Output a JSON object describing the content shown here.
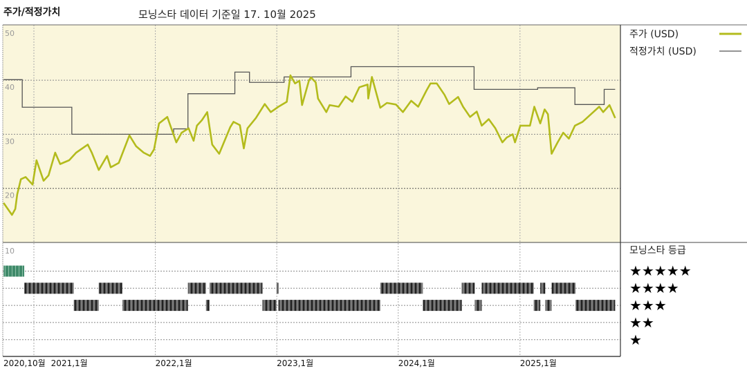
{
  "header": {
    "chart_title": "주가/적정가치",
    "data_date_label": "모닝스타 데이터 기준일 17. 10월 2025"
  },
  "legend": {
    "price_label": "주가 (USD)",
    "fair_value_label": "적정가치 (USD)",
    "rating_title": "모닝스타 등급",
    "rating_stars": [
      "★★★★★",
      "★★★★",
      "★★★",
      "★★",
      "★"
    ]
  },
  "colors": {
    "plot_background": "#faf6dc",
    "price_line": "#b3bb1c",
    "fair_value_line": "#555555",
    "rating_5_bar": "#3f8a6a",
    "rating_bar": "#3a3a3a"
  },
  "chart_data": [
    {
      "type": "line",
      "ylim": [
        10,
        50
      ],
      "yticks": [
        "50",
        "40",
        "30",
        "20"
      ],
      "xlim": [
        "2020-10-01",
        "2025-10-17"
      ],
      "xticks": [
        {
          "date": "2020-10-01",
          "label": "2020,10월"
        },
        {
          "date": "2021-01-01",
          "label": "2021,1월"
        },
        {
          "date": "2022-01-01",
          "label": "2022,1월"
        },
        {
          "date": "2023-01-01",
          "label": "2023,1월"
        },
        {
          "date": "2024-01-01",
          "label": "2024,1월"
        },
        {
          "date": "2025-01-01",
          "label": "2025,1월"
        }
      ],
      "grid": true,
      "legend": "right",
      "series": [
        {
          "name": "주가 (USD)",
          "points": [
            [
              "2020-10-02",
              17.3
            ],
            [
              "2020-10-27",
              15.1
            ],
            [
              "2020-11-06",
              16.2
            ],
            [
              "2020-11-12",
              18.9
            ],
            [
              "2020-11-23",
              21.7
            ],
            [
              "2020-12-07",
              22.1
            ],
            [
              "2020-12-28",
              20.7
            ],
            [
              "2021-01-09",
              25.2
            ],
            [
              "2021-01-30",
              21.4
            ],
            [
              "2021-02-14",
              22.4
            ],
            [
              "2021-03-06",
              26.6
            ],
            [
              "2021-03-21",
              24.5
            ],
            [
              "2021-04-17",
              25.2
            ],
            [
              "2021-05-08",
              26.6
            ],
            [
              "2021-06-12",
              28.1
            ],
            [
              "2021-06-24",
              26.6
            ],
            [
              "2021-07-15",
              23.4
            ],
            [
              "2021-08-09",
              26.0
            ],
            [
              "2021-08-20",
              23.9
            ],
            [
              "2021-09-13",
              24.7
            ],
            [
              "2021-10-15",
              29.8
            ],
            [
              "2021-11-04",
              27.8
            ],
            [
              "2021-11-27",
              26.6
            ],
            [
              "2021-12-16",
              26.0
            ],
            [
              "2021-12-28",
              27.2
            ],
            [
              "2022-01-12",
              32.0
            ],
            [
              "2022-02-06",
              33.2
            ],
            [
              "2022-02-18",
              31.1
            ],
            [
              "2022-03-05",
              28.5
            ],
            [
              "2022-03-21",
              30.3
            ],
            [
              "2022-04-11",
              31.1
            ],
            [
              "2022-04-26",
              28.8
            ],
            [
              "2022-05-06",
              31.6
            ],
            [
              "2022-05-21",
              32.6
            ],
            [
              "2022-06-06",
              34.1
            ],
            [
              "2022-06-21",
              28.1
            ],
            [
              "2022-07-12",
              26.4
            ],
            [
              "2022-08-14",
              31.3
            ],
            [
              "2022-08-24",
              32.3
            ],
            [
              "2022-09-12",
              31.7
            ],
            [
              "2022-09-24",
              27.4
            ],
            [
              "2022-10-05",
              31.1
            ],
            [
              "2022-10-30",
              33.0
            ],
            [
              "2022-11-26",
              35.6
            ],
            [
              "2022-12-14",
              34.1
            ],
            [
              "2023-01-06",
              35.1
            ],
            [
              "2023-01-31",
              36.0
            ],
            [
              "2023-02-11",
              40.9
            ],
            [
              "2023-02-25",
              39.4
            ],
            [
              "2023-03-10",
              39.9
            ],
            [
              "2023-03-18",
              35.4
            ],
            [
              "2023-04-08",
              40.0
            ],
            [
              "2023-04-14",
              40.5
            ],
            [
              "2023-04-28",
              39.6
            ],
            [
              "2023-05-05",
              36.6
            ],
            [
              "2023-05-30",
              34.1
            ],
            [
              "2023-06-09",
              35.4
            ],
            [
              "2023-07-06",
              35.1
            ],
            [
              "2023-07-27",
              37.0
            ],
            [
              "2023-08-16",
              36.0
            ],
            [
              "2023-09-06",
              38.7
            ],
            [
              "2023-10-01",
              39.2
            ],
            [
              "2023-10-03",
              36.6
            ],
            [
              "2023-10-14",
              40.6
            ],
            [
              "2023-11-08",
              34.9
            ],
            [
              "2023-11-28",
              35.8
            ],
            [
              "2023-12-25",
              35.5
            ],
            [
              "2024-01-15",
              34.1
            ],
            [
              "2024-02-09",
              36.2
            ],
            [
              "2024-03-01",
              35.1
            ],
            [
              "2024-03-26",
              38.1
            ],
            [
              "2024-04-07",
              39.4
            ],
            [
              "2024-04-26",
              39.4
            ],
            [
              "2024-05-19",
              37.3
            ],
            [
              "2024-06-02",
              35.6
            ],
            [
              "2024-06-29",
              36.9
            ],
            [
              "2024-07-14",
              35.1
            ],
            [
              "2024-08-04",
              33.2
            ],
            [
              "2024-08-24",
              34.2
            ],
            [
              "2024-09-08",
              31.6
            ],
            [
              "2024-09-29",
              32.8
            ],
            [
              "2024-10-19",
              31.1
            ],
            [
              "2024-11-09",
              28.5
            ],
            [
              "2024-11-22",
              29.4
            ],
            [
              "2024-12-10",
              30.0
            ],
            [
              "2024-12-17",
              28.5
            ],
            [
              "2025-01-02",
              31.6
            ],
            [
              "2025-01-31",
              31.6
            ],
            [
              "2025-02-13",
              35.1
            ],
            [
              "2025-03-03",
              32.0
            ],
            [
              "2025-03-16",
              34.6
            ],
            [
              "2025-03-26",
              33.7
            ],
            [
              "2025-04-06",
              26.4
            ],
            [
              "2025-04-24",
              28.5
            ],
            [
              "2025-05-11",
              30.3
            ],
            [
              "2025-05-28",
              29.2
            ],
            [
              "2025-06-15",
              31.6
            ],
            [
              "2025-07-08",
              32.3
            ],
            [
              "2025-08-02",
              33.7
            ],
            [
              "2025-08-27",
              35.1
            ],
            [
              "2025-09-08",
              34.1
            ],
            [
              "2025-09-27",
              35.4
            ],
            [
              "2025-10-14",
              33.0
            ]
          ]
        },
        {
          "name": "적정가치 (USD)",
          "step": true,
          "points": [
            [
              "2020-10-02",
              40.1
            ],
            [
              "2020-11-27",
              35.0
            ],
            [
              "2021-04-25",
              30.0
            ],
            [
              "2022-02-25",
              31.0
            ],
            [
              "2022-04-09",
              37.5
            ],
            [
              "2022-08-28",
              41.5
            ],
            [
              "2022-10-11",
              39.6
            ],
            [
              "2023-01-23",
              40.6
            ],
            [
              "2023-08-12",
              42.5
            ],
            [
              "2024-08-16",
              38.3
            ],
            [
              "2025-02-23",
              38.6
            ],
            [
              "2025-06-15",
              35.5
            ],
            [
              "2025-09-11",
              38.3
            ],
            [
              "2025-10-14",
              38.3
            ]
          ]
        }
      ]
    },
    {
      "type": "bar",
      "title": "모닝스타 등급",
      "ytick": "10",
      "rating_periods": [
        [
          "2020-10-02",
          "2020-12-03",
          5
        ],
        [
          "2020-12-03",
          "2021-05-01",
          4
        ],
        [
          "2021-05-01",
          "2021-07-15",
          3
        ],
        [
          "2021-07-15",
          "2021-09-24",
          4
        ],
        [
          "2021-09-24",
          "2022-04-09",
          3
        ],
        [
          "2022-04-09",
          "2022-06-02",
          4
        ],
        [
          "2022-06-02",
          "2022-06-13",
          3
        ],
        [
          "2022-06-13",
          "2022-11-19",
          4
        ],
        [
          "2022-11-19",
          "2022-12-31",
          3
        ],
        [
          "2022-12-31",
          "2023-01-06",
          4
        ],
        [
          "2023-01-06",
          "2023-11-08",
          3
        ],
        [
          "2023-11-08",
          "2024-03-15",
          4
        ],
        [
          "2024-03-15",
          "2024-07-10",
          3
        ],
        [
          "2024-07-10",
          "2024-08-18",
          4
        ],
        [
          "2024-08-18",
          "2024-09-08",
          3
        ],
        [
          "2024-09-08",
          "2025-02-11",
          4
        ],
        [
          "2025-02-11",
          "2025-03-03",
          3
        ],
        [
          "2025-03-03",
          "2025-03-18",
          4
        ],
        [
          "2025-03-18",
          "2025-04-06",
          3
        ],
        [
          "2025-04-06",
          "2025-06-17",
          4
        ],
        [
          "2025-06-17",
          "2025-10-14",
          3
        ]
      ]
    }
  ]
}
